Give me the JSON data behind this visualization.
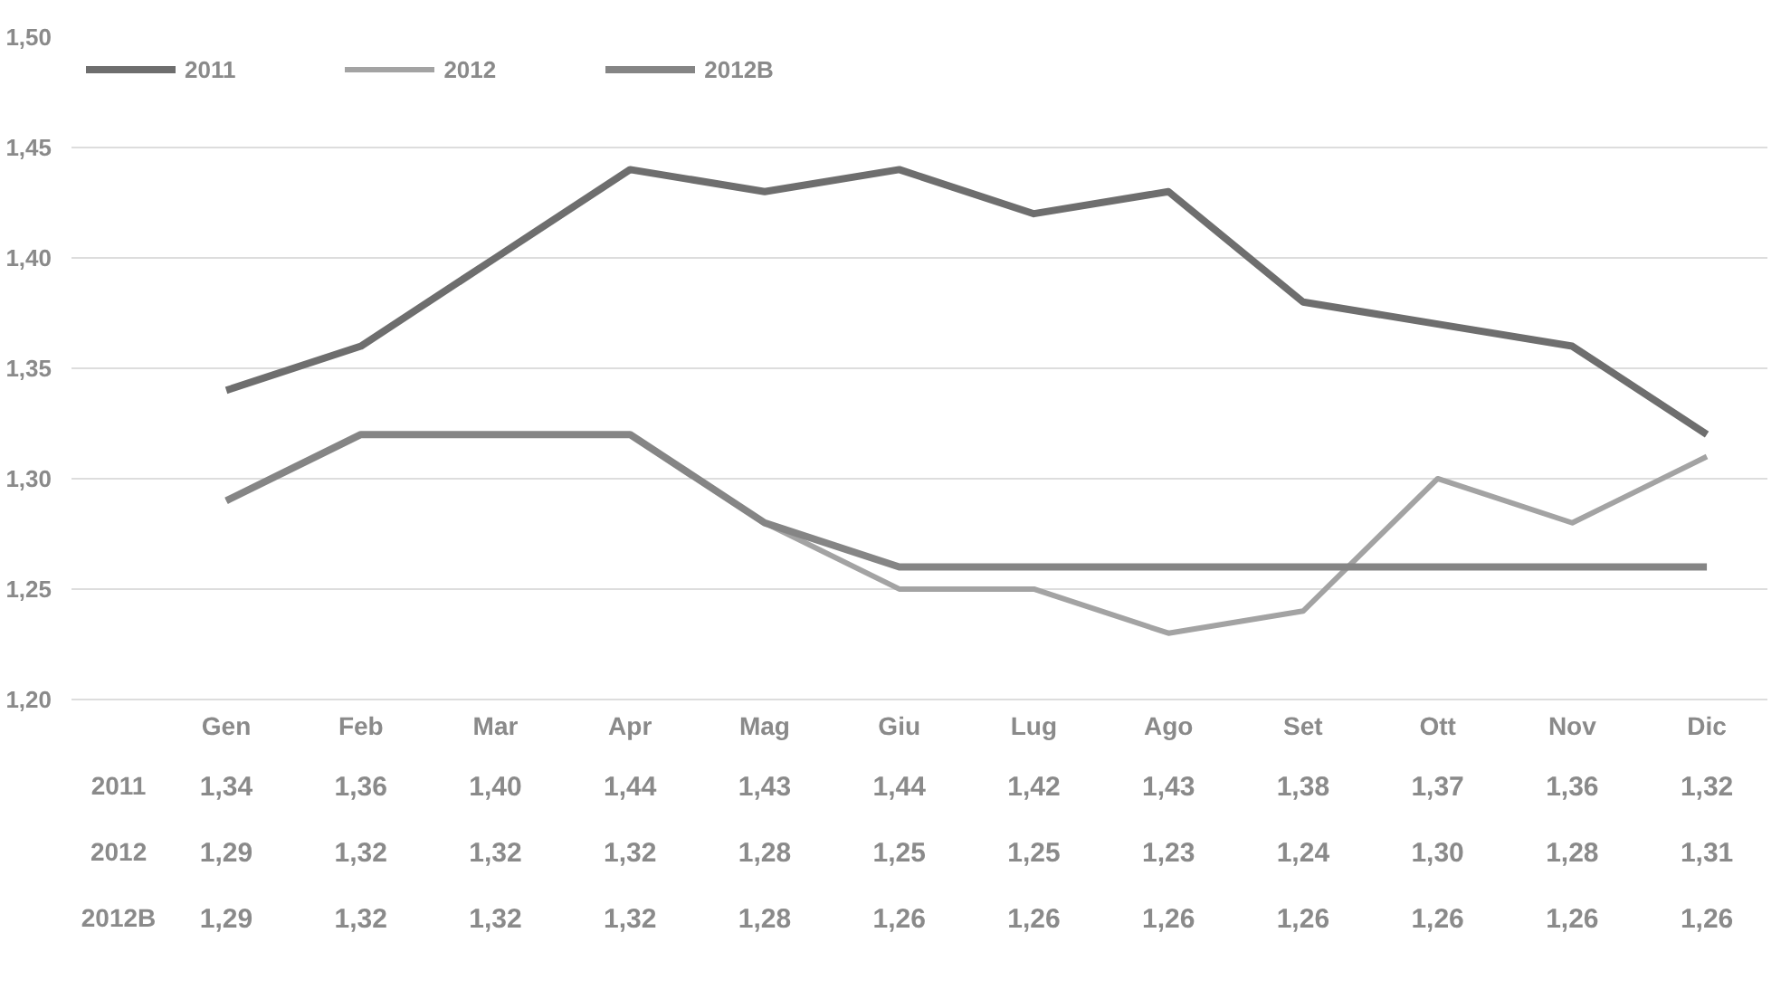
{
  "chart_data": {
    "type": "line",
    "categories": [
      "Gen",
      "Feb",
      "Mar",
      "Apr",
      "Mag",
      "Giu",
      "Lug",
      "Ago",
      "Set",
      "Ott",
      "Nov",
      "Dic"
    ],
    "series": [
      {
        "name": "2011",
        "color": "#6e6e6e",
        "values": [
          1.34,
          1.36,
          1.4,
          1.44,
          1.43,
          1.44,
          1.42,
          1.43,
          1.38,
          1.37,
          1.36,
          1.32
        ],
        "value_labels": [
          "1,34",
          "1,36",
          "1,40",
          "1,44",
          "1,43",
          "1,44",
          "1,42",
          "1,43",
          "1,38",
          "1,37",
          "1,36",
          "1,32"
        ]
      },
      {
        "name": "2012",
        "color": "#a3a3a3",
        "values": [
          1.29,
          1.32,
          1.32,
          1.32,
          1.28,
          1.25,
          1.25,
          1.23,
          1.24,
          1.3,
          1.28,
          1.31
        ],
        "value_labels": [
          "1,29",
          "1,32",
          "1,32",
          "1,32",
          "1,28",
          "1,25",
          "1,25",
          "1,23",
          "1,24",
          "1,30",
          "1,28",
          "1,31"
        ]
      },
      {
        "name": "2012B",
        "color": "#858585",
        "values": [
          1.29,
          1.32,
          1.32,
          1.32,
          1.28,
          1.26,
          1.26,
          1.26,
          1.26,
          1.26,
          1.26,
          1.26
        ],
        "value_labels": [
          "1,29",
          "1,32",
          "1,32",
          "1,32",
          "1,28",
          "1,26",
          "1,26",
          "1,26",
          "1,26",
          "1,26",
          "1,26",
          "1,26"
        ]
      }
    ],
    "ylim": [
      1.2,
      1.5
    ],
    "yticks": [
      {
        "value": 1.2,
        "label": "1,20"
      },
      {
        "value": 1.25,
        "label": "1,25"
      },
      {
        "value": 1.3,
        "label": "1,30"
      },
      {
        "value": 1.35,
        "label": "1,35"
      },
      {
        "value": 1.4,
        "label": "1,40"
      },
      {
        "value": 1.45,
        "label": "1,45"
      },
      {
        "value": 1.5,
        "label": "1,50"
      }
    ],
    "grid": "y",
    "legend": "top left"
  }
}
